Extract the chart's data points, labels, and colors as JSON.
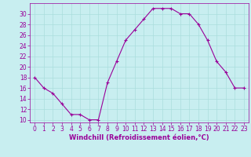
{
  "x": [
    0,
    1,
    2,
    3,
    4,
    5,
    6,
    7,
    8,
    9,
    10,
    11,
    12,
    13,
    14,
    15,
    16,
    17,
    18,
    19,
    20,
    21,
    22,
    23
  ],
  "y": [
    18,
    16,
    15,
    13,
    11,
    11,
    10,
    10,
    17,
    21,
    25,
    27,
    29,
    31,
    31,
    31,
    30,
    30,
    28,
    25,
    21,
    19,
    16,
    16
  ],
  "line_color": "#990099",
  "marker": "+",
  "marker_size": 3.5,
  "marker_color": "#990099",
  "bg_color": "#c8eef0",
  "grid_color": "#aadddd",
  "xlabel": "Windchill (Refroidissement éolien,°C)",
  "xlabel_color": "#990099",
  "xlabel_fontsize": 6.0,
  "tick_color": "#990099",
  "tick_fontsize": 5.5,
  "ylim": [
    9.5,
    32
  ],
  "xlim": [
    -0.5,
    23.5
  ],
  "yticks": [
    10,
    12,
    14,
    16,
    18,
    20,
    22,
    24,
    26,
    28,
    30
  ],
  "xticks": [
    0,
    1,
    2,
    3,
    4,
    5,
    6,
    7,
    8,
    9,
    10,
    11,
    12,
    13,
    14,
    15,
    16,
    17,
    18,
    19,
    20,
    21,
    22,
    23
  ]
}
